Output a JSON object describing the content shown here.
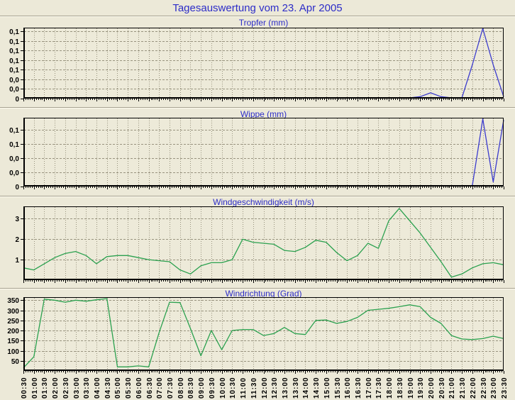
{
  "header": {
    "title": "Tagesauswertung vom 23. Apr 2005"
  },
  "colors": {
    "background": "#ece9d8",
    "plot_background": "#edead9",
    "title_text": "#2d2dc8",
    "grid": "#98937e",
    "axis": "#000000",
    "tick_text": "#000000",
    "groove_dark": "#a5a18f",
    "groove_light": "#fffdf2",
    "rain_series": "#3c3ccd",
    "wind_series": "#2ba14f"
  },
  "time_labels": [
    "00:30",
    "01:00",
    "01:30",
    "02:00",
    "02:30",
    "03:00",
    "03:30",
    "04:00",
    "04:30",
    "05:00",
    "05:30",
    "06:00",
    "06:30",
    "07:00",
    "07:30",
    "08:00",
    "08:30",
    "09:00",
    "09:30",
    "10:00",
    "10:30",
    "11:00",
    "11:30",
    "12:00",
    "12:30",
    "13:00",
    "13:30",
    "14:00",
    "14:30",
    "15:00",
    "15:30",
    "16:00",
    "16:30",
    "17:00",
    "17:30",
    "18:00",
    "18:30",
    "19:00",
    "19:30",
    "20:00",
    "20:30",
    "21:00",
    "21:30",
    "22:00",
    "22:30",
    "23:00",
    "23:30"
  ],
  "chart_data": [
    {
      "type": "line",
      "title": "Tropfer (mm)",
      "ylabel": "mm",
      "legend": "none",
      "grid": true,
      "series_color_key": "rain_series",
      "ylim": [
        0,
        0.1475
      ],
      "ytick_values": [
        0,
        0.02,
        0.04,
        0.06,
        0.08,
        0.1,
        0.12,
        0.14
      ],
      "ytick_labels": [
        "0",
        "0,0",
        "0,0",
        "0,1",
        "0,1",
        "0,1",
        "0,1",
        "0,1"
      ],
      "values": [
        0,
        0,
        0,
        0,
        0,
        0,
        0,
        0,
        0,
        0,
        0,
        0,
        0,
        0,
        0,
        0,
        0,
        0,
        0,
        0,
        0,
        0,
        0,
        0,
        0,
        0,
        0,
        0,
        0,
        0,
        0,
        0,
        0,
        0,
        0,
        0,
        0,
        0,
        0.004,
        0.012,
        0.004,
        0,
        0,
        0.07,
        0.147,
        0.07,
        0.004
      ]
    },
    {
      "type": "line",
      "title": "Wippe (mm)",
      "ylabel": "mm",
      "legend": "none",
      "grid": true,
      "series_color_key": "rain_series",
      "ylim": [
        0,
        0.122
      ],
      "ytick_values": [
        0,
        0.025,
        0.05,
        0.075,
        0.1
      ],
      "ytick_labels": [
        "0",
        "0,0",
        "0,0",
        "0,1",
        "0,1"
      ],
      "values": [
        0,
        0,
        0,
        0,
        0,
        0,
        0,
        0,
        0,
        0,
        0,
        0,
        0,
        0,
        0,
        0,
        0,
        0,
        0,
        0,
        0,
        0,
        0,
        0,
        0,
        0,
        0,
        0,
        0,
        0,
        0,
        0,
        0,
        0,
        0,
        0,
        0,
        0,
        0,
        0,
        0,
        0,
        0,
        0,
        0.12,
        0.008,
        0.118
      ]
    },
    {
      "type": "line",
      "title": "Windgeschwindigkeit (m/s)",
      "ylabel": "m/s",
      "legend": "none",
      "grid": true,
      "series_color_key": "wind_series",
      "ylim": [
        0,
        3.6
      ],
      "ytick_values": [
        1,
        2,
        3
      ],
      "ytick_labels": [
        "1",
        "2",
        "3"
      ],
      "values": [
        0.6,
        0.5,
        0.8,
        1.1,
        1.3,
        1.4,
        1.2,
        0.8,
        1.15,
        1.2,
        1.2,
        1.1,
        1.0,
        0.95,
        0.9,
        0.5,
        0.3,
        0.7,
        0.85,
        0.85,
        1.0,
        2.0,
        1.85,
        1.8,
        1.75,
        1.45,
        1.4,
        1.6,
        1.95,
        1.85,
        1.35,
        0.95,
        1.2,
        1.8,
        1.55,
        2.9,
        3.5,
        2.9,
        2.3,
        1.6,
        0.9,
        0.15,
        0.3,
        0.6,
        0.8,
        0.85,
        0.75
      ]
    },
    {
      "type": "line",
      "title": "Windrichtung (Grad)",
      "ylabel": "Grad",
      "legend": "none",
      "grid": true,
      "series_color_key": "wind_series",
      "ylim": [
        0,
        365
      ],
      "ytick_values": [
        50,
        100,
        150,
        200,
        250,
        300,
        350
      ],
      "ytick_labels": [
        "50",
        "100",
        "150",
        "200",
        "250",
        "300",
        "350"
      ],
      "values": [
        15,
        70,
        355,
        350,
        340,
        350,
        345,
        352,
        358,
        20,
        20,
        25,
        20,
        190,
        340,
        338,
        210,
        75,
        200,
        105,
        200,
        205,
        205,
        175,
        185,
        215,
        185,
        180,
        250,
        252,
        235,
        245,
        265,
        300,
        305,
        310,
        318,
        327,
        318,
        265,
        235,
        175,
        158,
        155,
        160,
        172,
        160
      ]
    }
  ]
}
